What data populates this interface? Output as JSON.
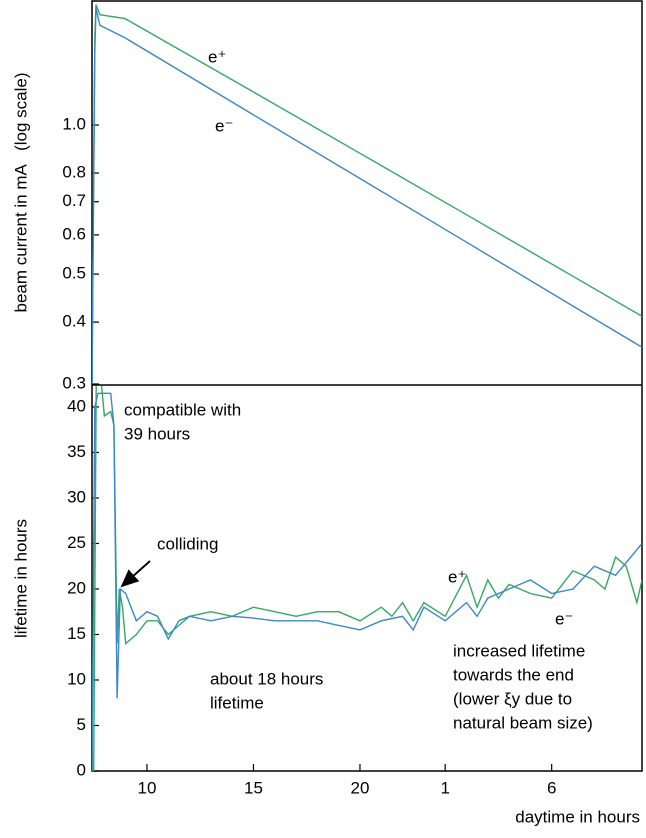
{
  "chart_data": [
    {
      "type": "line",
      "log_y": true,
      "ylabel": "beam current in mA   (log scale)",
      "xlim": [
        7.42,
        33.24
      ],
      "ylim": [
        0.3,
        1.78
      ],
      "yticks": [
        0.3,
        0.4,
        0.5,
        0.6,
        0.7,
        0.8,
        {
          "value": 1,
          "label": "1.0"
        }
      ],
      "series": [
        {
          "name": "e⁺",
          "color": "#35a862",
          "x": [
            7.42,
            7.55,
            7.61,
            7.79,
            8.97,
            15,
            20,
            25,
            30,
            33.24
          ],
          "values": [
            0.3,
            1.5,
            1.75,
            1.67,
            1.64,
            1.166,
            0.877,
            0.659,
            0.495,
            0.411
          ]
        },
        {
          "name": "e⁻",
          "color": "#3b88c8",
          "x": [
            7.42,
            7.55,
            7.61,
            7.79,
            8.97,
            15,
            20,
            25,
            30,
            33.24
          ],
          "values": [
            0.3,
            1.4,
            1.72,
            1.59,
            1.5,
            1.048,
            0.78,
            0.58,
            0.431,
            0.356
          ]
        }
      ]
    },
    {
      "type": "line",
      "ylabel": "lifetime in hours",
      "xlabel": "daytime in hours",
      "xlim": [
        7.42,
        33.24
      ],
      "ylim": [
        0,
        42.3
      ],
      "xticks": [
        10,
        15,
        20,
        {
          "value": 24,
          "label": "1"
        },
        {
          "value": 29,
          "label": "6"
        }
      ],
      "yticks": [
        0,
        5,
        10,
        15,
        20,
        25,
        30,
        35,
        40
      ],
      "annotations": [
        [
          "compatible with",
          "39 hours"
        ],
        [
          "colliding"
        ],
        [
          "about 18 hours",
          "lifetime"
        ],
        [
          "e⁺"
        ],
        [
          "e⁻"
        ],
        [
          "increased lifetime",
          "towards the end",
          "(lower ξy due to",
          "natural beam size)"
        ]
      ],
      "series": [
        {
          "name": "e⁺",
          "color": "#35a862",
          "x": [
            7.42,
            7.5,
            7.62,
            7.8,
            8.0,
            8.3,
            8.45,
            8.6,
            8.7,
            8.85,
            9.0,
            9.5,
            10,
            10.5,
            11,
            11.5,
            12,
            13,
            14,
            15,
            16,
            17,
            18,
            19,
            20,
            21,
            21.5,
            22,
            22.5,
            23,
            24,
            25,
            25.5,
            26,
            26.5,
            27,
            28,
            29,
            30,
            31,
            31.5,
            32,
            32.5,
            33,
            33.24
          ],
          "values": [
            0,
            0,
            44,
            44,
            39,
            39.5,
            38,
            14,
            20,
            18,
            14,
            15,
            16.5,
            16.5,
            15,
            16,
            17,
            17.5,
            17,
            18,
            17.5,
            17,
            17.5,
            17.5,
            16.5,
            18,
            17,
            18.5,
            16.5,
            18.5,
            17,
            21.5,
            18,
            21,
            19,
            20.5,
            19.5,
            19,
            22,
            21,
            20,
            23.5,
            22.5,
            18.5,
            21
          ]
        },
        {
          "name": "e⁻",
          "color": "#3b88c8",
          "x": [
            7.42,
            7.55,
            7.7,
            8.3,
            8.45,
            8.6,
            8.75,
            9.0,
            9.5,
            10,
            10.5,
            11,
            11.5,
            12,
            13,
            14,
            15,
            16,
            17,
            18,
            19,
            20,
            21,
            22,
            22.5,
            23,
            24,
            25,
            25.5,
            26,
            27,
            28,
            29,
            30,
            31,
            32,
            33.24
          ],
          "values": [
            0,
            40,
            41.5,
            41.5,
            38,
            8,
            20,
            19.5,
            16.5,
            17.5,
            17,
            14.5,
            16.5,
            17,
            16.5,
            17,
            16.8,
            16.5,
            16.5,
            16.5,
            16,
            15.5,
            16.5,
            17,
            15.5,
            18,
            16.5,
            18.5,
            17,
            19,
            20,
            21,
            19.5,
            20,
            22.5,
            21.5,
            25
          ]
        }
      ]
    }
  ]
}
